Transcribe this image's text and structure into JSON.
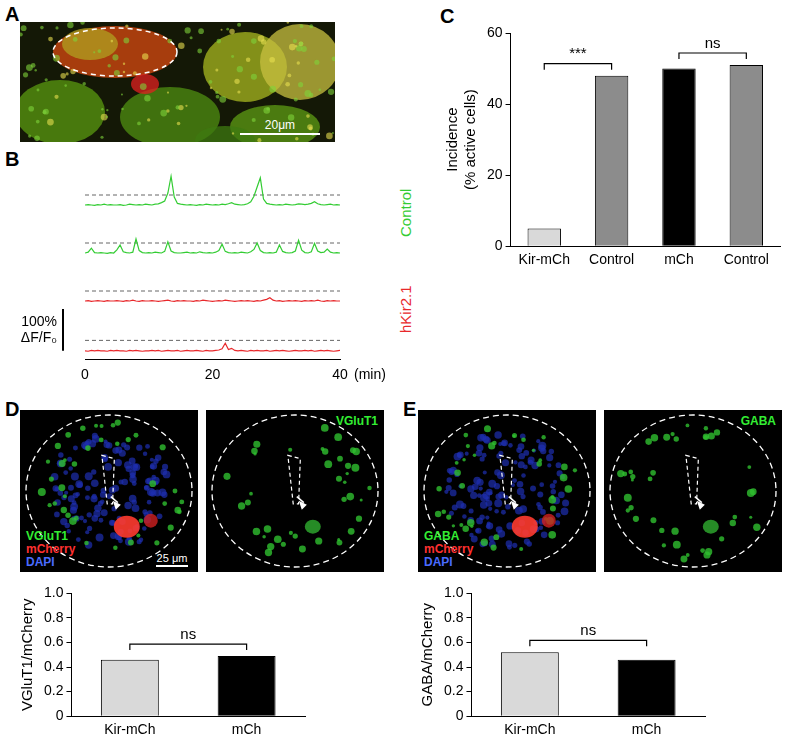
{
  "chart_data": [
    {
      "type": "line",
      "title": "B",
      "x": [
        0,
        0.5,
        1,
        1.5,
        2,
        2.5,
        3,
        3.5,
        4,
        4.5,
        5,
        5.5,
        6,
        6.5,
        7,
        7.5,
        8,
        8.5,
        9,
        9.5,
        10,
        10.5,
        11,
        11.5,
        12,
        12.5,
        13,
        13.5,
        14,
        14.5,
        15,
        15.5,
        16,
        16.5,
        17,
        17.5,
        18,
        18.5,
        19,
        19.5,
        20,
        20.5,
        21,
        21.5,
        22,
        22.5,
        23,
        23.5,
        24,
        24.5,
        25,
        25.5,
        26,
        26.5,
        27,
        27.5,
        28,
        28.5,
        29,
        29.5,
        30,
        30.5,
        31,
        31.5,
        32,
        32.5,
        33,
        33.5,
        34,
        34.5,
        35,
        35.5,
        36,
        36.5,
        37,
        37.5,
        38,
        38.5,
        39,
        39.5,
        40
      ],
      "xlim": [
        0,
        40
      ],
      "xticks": [
        0,
        20,
        40
      ],
      "xlabel": "(min)",
      "ylim": [
        -20,
        100
      ],
      "tick_labels": "x",
      "grid": false,
      "scale_bar": {
        "value": 100,
        "label": "100% ΔF/F₀"
      },
      "series": [
        {
          "name": "Control",
          "color": "#33cc33",
          "threshold": 25,
          "values": [
            0,
            1,
            0,
            -1,
            1,
            0,
            2,
            0,
            1,
            0,
            0,
            1,
            -1,
            0,
            2,
            1,
            0,
            1,
            0,
            2,
            1,
            0,
            2,
            3,
            6,
            10,
            30,
            72,
            20,
            4,
            2,
            1,
            0,
            1,
            0,
            -1,
            1,
            0,
            2,
            1,
            0,
            1,
            0,
            2,
            1,
            3,
            6,
            2,
            1,
            0,
            1,
            3,
            8,
            22,
            45,
            68,
            15,
            4,
            2,
            1,
            0,
            1,
            0,
            2,
            1,
            0,
            1,
            3,
            2,
            1,
            2,
            4,
            8,
            3,
            1,
            0,
            1,
            2,
            0,
            1,
            0
          ]
        },
        {
          "name": "Control",
          "color": "#33cc33",
          "threshold": 25,
          "values": [
            0,
            2,
            12,
            1,
            0,
            1,
            0,
            -1,
            1,
            0,
            8,
            20,
            3,
            1,
            0,
            2,
            35,
            6,
            1,
            0,
            1,
            0,
            2,
            1,
            0,
            4,
            28,
            5,
            1,
            0,
            0,
            1,
            2,
            0,
            1,
            0,
            3,
            1,
            0,
            1,
            0,
            2,
            6,
            22,
            4,
            1,
            0,
            1,
            0,
            2,
            1,
            0,
            3,
            9,
            25,
            6,
            1,
            0,
            1,
            0,
            2,
            20,
            4,
            1,
            0,
            1,
            5,
            32,
            7,
            1,
            0,
            3,
            24,
            5,
            1,
            2,
            10,
            2,
            0,
            1,
            0
          ]
        },
        {
          "name": "hKir2.1",
          "color": "#e8282b",
          "threshold": 25,
          "values": [
            0,
            1,
            -1,
            0,
            1,
            0,
            -1,
            1,
            0,
            0,
            1,
            0,
            -1,
            1,
            0,
            2,
            0,
            -1,
            1,
            0,
            0,
            1,
            0,
            -1,
            0,
            1,
            2,
            0,
            -1,
            1,
            0,
            1,
            0,
            0,
            -1,
            1,
            0,
            2,
            1,
            0,
            -1,
            0,
            1,
            0,
            2,
            1,
            0,
            -1,
            0,
            1,
            0,
            1,
            0,
            -1,
            1,
            0,
            2,
            4,
            8,
            2,
            0,
            1,
            -1,
            0,
            1,
            0,
            1,
            0,
            -1,
            1,
            0,
            1,
            0,
            2,
            0,
            -1,
            1,
            0,
            1,
            0,
            0
          ]
        },
        {
          "name": "hKir2.1",
          "color": "#e8282b",
          "threshold": 25,
          "values": [
            0,
            -1,
            1,
            0,
            1,
            0,
            0,
            -1,
            1,
            0,
            1,
            0,
            0,
            -1,
            1,
            0,
            1,
            0,
            -1,
            0,
            0,
            1,
            0,
            1,
            -1,
            0,
            1,
            0,
            0,
            1,
            -1,
            0,
            1,
            0,
            0,
            1,
            0,
            -1,
            1,
            0,
            0,
            1,
            2,
            5,
            18,
            3,
            6,
            1,
            0,
            1,
            0,
            -1,
            1,
            0,
            1,
            0,
            0,
            1,
            -1,
            0,
            1,
            0,
            1,
            0,
            -1,
            0,
            1,
            0,
            0,
            1,
            0,
            1,
            -1,
            0,
            1,
            0,
            1,
            0,
            -1,
            0,
            1
          ]
        }
      ]
    },
    {
      "type": "bar",
      "title": "C",
      "categories": [
        "Kir-mCh",
        "Control",
        "mCh",
        "Control"
      ],
      "values": [
        5,
        48,
        50,
        51
      ],
      "colors": [
        "#d9d9d9",
        "#8c8c8c",
        "#000000",
        "#8c8c8c"
      ],
      "ylim": [
        0,
        60
      ],
      "yticks": [
        0,
        20,
        40,
        60
      ],
      "ylabel": [
        "Incidence",
        "(% active cells)"
      ],
      "grid": false,
      "annotations": [
        {
          "from": 0,
          "to": 1,
          "label": "***"
        },
        {
          "from": 2,
          "to": 3,
          "label": "ns"
        }
      ]
    },
    {
      "type": "bar",
      "categories": [
        "Kir-mCh",
        "mCh"
      ],
      "values": [
        0.46,
        0.49
      ],
      "colors": [
        "#d9d9d9",
        "#000000"
      ],
      "ylim": [
        0,
        1
      ],
      "yticks": [
        0,
        0.2,
        0.4,
        0.6,
        0.8,
        {
          "value": 1,
          "label": "1.0"
        }
      ],
      "ylabel": "VGluT1/mCherry",
      "grid": false,
      "annotations": [
        {
          "from": 0,
          "to": 1,
          "label": "ns"
        }
      ]
    },
    {
      "type": "bar",
      "categories": [
        "Kir-mCh",
        "mCh"
      ],
      "values": [
        0.52,
        0.46
      ],
      "colors": [
        "#d9d9d9",
        "#000000"
      ],
      "ylim": [
        0,
        1
      ],
      "yticks": [
        0,
        0.2,
        0.4,
        0.6,
        0.8,
        {
          "value": 1,
          "label": "1.0"
        }
      ],
      "ylabel": "GABA/mCherry",
      "grid": false,
      "annotations": [
        {
          "from": 0,
          "to": 1,
          "label": "ns"
        }
      ]
    }
  ],
  "images": [
    {
      "panel": "A",
      "scale_bar": "20μm"
    },
    {
      "panel": "D",
      "labels": [
        {
          "text": "VGluT1",
          "color": "#33ee33"
        },
        {
          "text": "mCherry",
          "color": "#ff3030"
        },
        {
          "text": "DAPI",
          "color": "#4a6bff"
        }
      ],
      "channel": {
        "text": "VGluT1",
        "color": "#33ee33"
      },
      "scale_bar": "25 μm"
    },
    {
      "panel": "E",
      "labels": [
        {
          "text": "GABA",
          "color": "#33ee33"
        },
        {
          "text": "mCherry",
          "color": "#ff3030"
        },
        {
          "text": "DAPI",
          "color": "#4a6bff"
        }
      ],
      "channel": {
        "text": "GABA",
        "color": "#33ee33"
      }
    }
  ]
}
